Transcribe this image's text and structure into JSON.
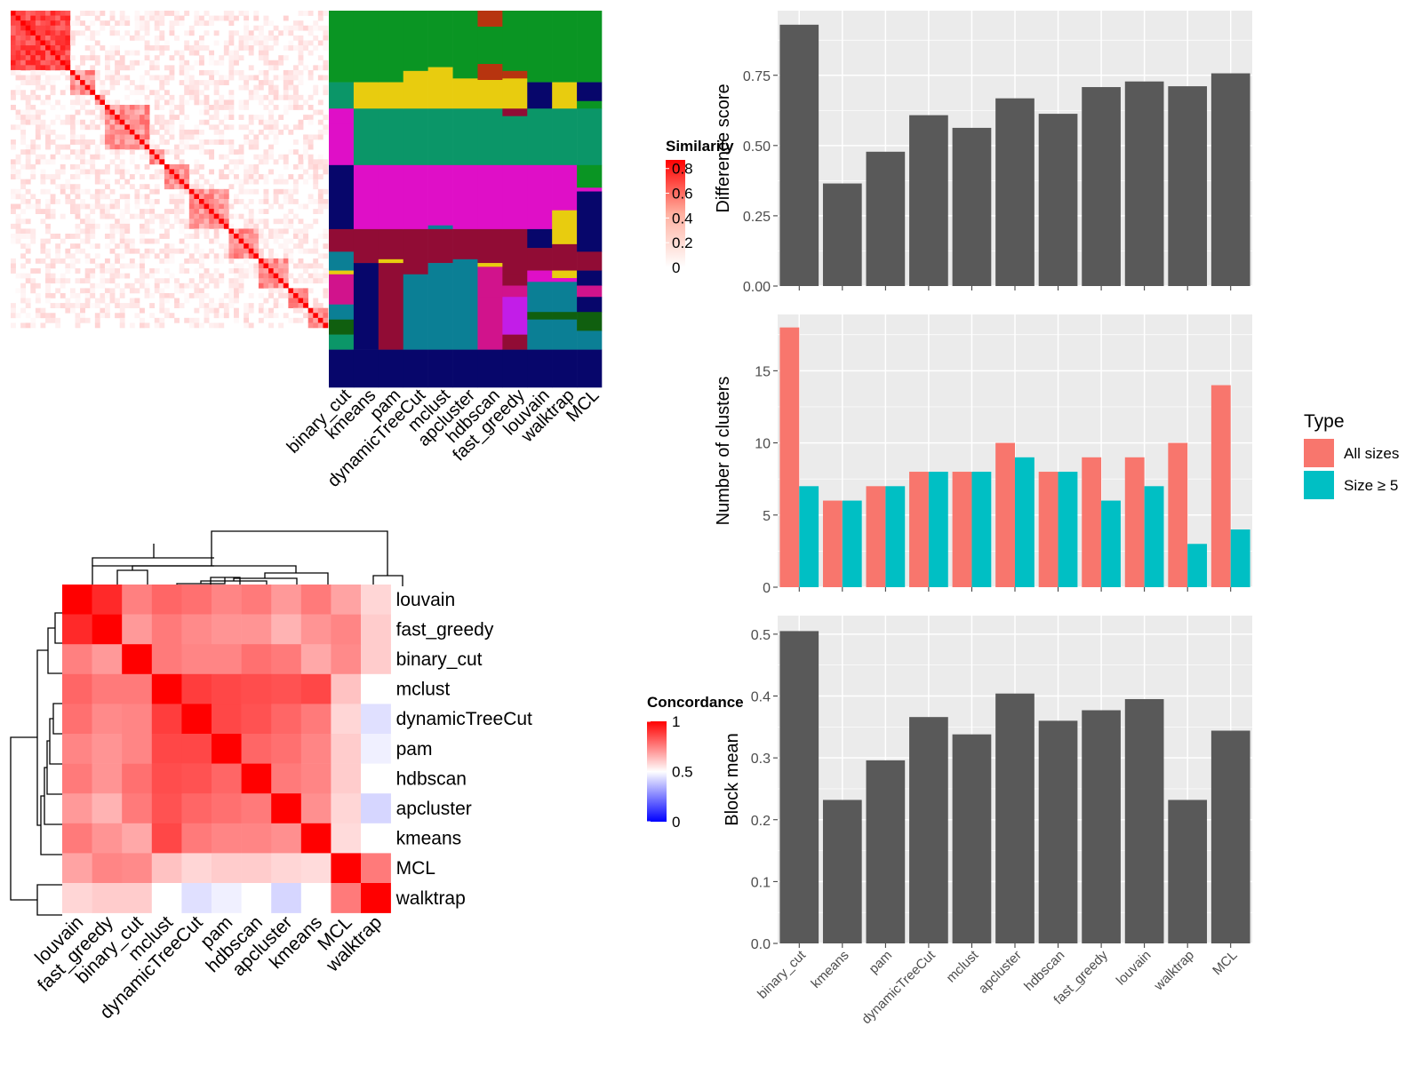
{
  "methods_order": [
    "binary_cut",
    "kmeans",
    "pam",
    "dynamicTreeCut",
    "mclust",
    "apcluster",
    "hdbscan",
    "fast_greedy",
    "louvain",
    "walktrap",
    "MCL"
  ],
  "colors": {
    "panel_bg": "#ebebeb",
    "grid": "#ffffff",
    "bar_gray": "#595959",
    "all_sizes": "#f8766d",
    "size_ge_5": "#00bfc4",
    "heat_high": "#ff0000",
    "heat_mid": "#ffffff",
    "heat_low": "#0000ff"
  },
  "similarity_heatmap": {
    "legend_title": "Similarity",
    "legend_ticks": [
      "0.8",
      "0.6",
      "0.4",
      "0.2",
      "0"
    ],
    "legend_values": [
      0.8,
      0.6,
      0.4,
      0.2,
      0
    ]
  },
  "cluster_assignment_panel": {
    "column_labels": [
      "binary_cut",
      "kmeans",
      "pam",
      "dynamicTreeCut",
      "mclust",
      "apcluster",
      "hdbscan",
      "fast_greedy",
      "louvain",
      "walktrap",
      "MCL"
    ],
    "palette": [
      "#0a9523",
      "#e8cc0f",
      "#0b9668",
      "#df0fc7",
      "#07066b",
      "#910c35",
      "#0b7f95",
      "#d1138c",
      "#c21de8",
      "#105f0f",
      "#b7340f"
    ]
  },
  "concordance_heatmap": {
    "legend_title": "Concordance",
    "legend_ticks": [
      "1",
      "0.5",
      "0"
    ],
    "legend_values": [
      1,
      0.5,
      0
    ],
    "row_labels": [
      "louvain",
      "fast_greedy",
      "binary_cut",
      "mclust",
      "dynamicTreeCut",
      "pam",
      "hdbscan",
      "apcluster",
      "kmeans",
      "MCL",
      "walktrap"
    ],
    "col_labels": [
      "louvain",
      "fast_greedy",
      "binary_cut",
      "mclust",
      "dynamicTreeCut",
      "pam",
      "hdbscan",
      "apcluster",
      "kmeans",
      "MCL",
      "walktrap"
    ],
    "matrix": [
      [
        1.0,
        0.92,
        0.75,
        0.8,
        0.78,
        0.74,
        0.76,
        0.7,
        0.76,
        0.68,
        0.58
      ],
      [
        0.92,
        1.0,
        0.7,
        0.76,
        0.73,
        0.71,
        0.71,
        0.65,
        0.71,
        0.74,
        0.6
      ],
      [
        0.75,
        0.7,
        1.0,
        0.76,
        0.74,
        0.74,
        0.78,
        0.76,
        0.67,
        0.73,
        0.6
      ],
      [
        0.8,
        0.76,
        0.76,
        1.0,
        0.88,
        0.86,
        0.85,
        0.84,
        0.86,
        0.62,
        0.5
      ],
      [
        0.78,
        0.73,
        0.74,
        0.88,
        1.0,
        0.86,
        0.84,
        0.8,
        0.76,
        0.58,
        0.44
      ],
      [
        0.74,
        0.71,
        0.74,
        0.86,
        0.86,
        1.0,
        0.8,
        0.78,
        0.74,
        0.6,
        0.47
      ],
      [
        0.76,
        0.71,
        0.78,
        0.85,
        0.84,
        0.8,
        1.0,
        0.76,
        0.74,
        0.6,
        0.5
      ],
      [
        0.7,
        0.65,
        0.76,
        0.84,
        0.8,
        0.78,
        0.76,
        1.0,
        0.72,
        0.58,
        0.42
      ],
      [
        0.76,
        0.71,
        0.67,
        0.86,
        0.76,
        0.74,
        0.74,
        0.72,
        1.0,
        0.57,
        0.5
      ],
      [
        0.68,
        0.74,
        0.73,
        0.62,
        0.58,
        0.6,
        0.6,
        0.58,
        0.57,
        1.0,
        0.76
      ],
      [
        0.58,
        0.6,
        0.6,
        0.5,
        0.44,
        0.47,
        0.5,
        0.42,
        0.5,
        0.76,
        1.0
      ]
    ]
  },
  "chart_data": [
    {
      "type": "bar",
      "categories": [
        "binary_cut",
        "kmeans",
        "pam",
        "dynamicTreeCut",
        "mclust",
        "apcluster",
        "hdbscan",
        "fast_greedy",
        "louvain",
        "walktrap",
        "MCL"
      ],
      "values": [
        0.93,
        0.365,
        0.478,
        0.608,
        0.563,
        0.668,
        0.613,
        0.708,
        0.728,
        0.711,
        0.757
      ],
      "ylabel": "Difference score",
      "ylim": [
        0,
        0.98
      ],
      "yticks": [
        "0.00",
        "0.25",
        "0.50",
        "0.75"
      ],
      "ytick_values": [
        0,
        0.25,
        0.5,
        0.75
      ],
      "grid": true
    },
    {
      "type": "bar",
      "categories": [
        "binary_cut",
        "kmeans",
        "pam",
        "dynamicTreeCut",
        "mclust",
        "apcluster",
        "hdbscan",
        "fast_greedy",
        "louvain",
        "walktrap",
        "MCL"
      ],
      "series": [
        {
          "name": "All sizes",
          "values": [
            18,
            6,
            7,
            8,
            8,
            10,
            8,
            9,
            9,
            10,
            14
          ]
        },
        {
          "name": "Size ≥ 5",
          "values": [
            7,
            6,
            7,
            8,
            8,
            9,
            8,
            6,
            7,
            3,
            4
          ]
        }
      ],
      "ylabel": "Number of clusters",
      "ylim": [
        0,
        18.9
      ],
      "yticks": [
        "0",
        "5",
        "10",
        "15"
      ],
      "ytick_values": [
        0,
        5,
        10,
        15
      ],
      "legend_title": "Type",
      "legend_placement": "right",
      "grid": true
    },
    {
      "type": "bar",
      "categories": [
        "binary_cut",
        "kmeans",
        "pam",
        "dynamicTreeCut",
        "mclust",
        "apcluster",
        "hdbscan",
        "fast_greedy",
        "louvain",
        "walktrap",
        "MCL"
      ],
      "values": [
        0.505,
        0.232,
        0.296,
        0.366,
        0.338,
        0.404,
        0.36,
        0.377,
        0.395,
        0.232,
        0.344
      ],
      "ylabel": "Block mean",
      "ylim": [
        0,
        0.53
      ],
      "yticks": [
        "0.0",
        "0.1",
        "0.2",
        "0.3",
        "0.4",
        "0.5"
      ],
      "ytick_values": [
        0,
        0.1,
        0.2,
        0.3,
        0.4,
        0.5
      ],
      "grid": true
    }
  ]
}
